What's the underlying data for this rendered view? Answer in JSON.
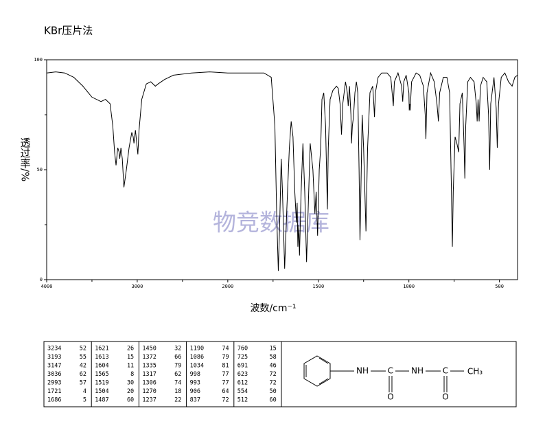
{
  "chart_data": {
    "type": "line",
    "title": "KBr压片法",
    "x_label": "波数/cm⁻¹",
    "y_label": "透过率/%",
    "watermark": "物竞数据库",
    "xlim": [
      4000,
      400
    ],
    "x_break": 2000,
    "xticks": [
      4000,
      3000,
      2000,
      1500,
      1000,
      500
    ],
    "x_minor_ticks": [
      3500,
      2500,
      1750,
      1250,
      750
    ],
    "ylim": [
      0,
      100
    ],
    "yticks": [
      0,
      50,
      100
    ],
    "y_minor_ticks": [
      25,
      75
    ],
    "series": [
      {
        "color": "#000000",
        "x": [
          4000,
          3900,
          3800,
          3700,
          3600,
          3500,
          3400,
          3350,
          3300,
          3270,
          3250,
          3234,
          3215,
          3200,
          3193,
          3180,
          3165,
          3147,
          3120,
          3090,
          3060,
          3045,
          3036,
          3020,
          3005,
          2993,
          2980,
          2950,
          2900,
          2850,
          2800,
          2770,
          2700,
          2600,
          2400,
          2200,
          2000,
          1900,
          1800,
          1760,
          1740,
          1730,
          1721,
          1712,
          1705,
          1698,
          1686,
          1675,
          1660,
          1650,
          1640,
          1630,
          1621,
          1617,
          1613,
          1608,
          1604,
          1595,
          1585,
          1575,
          1565,
          1555,
          1545,
          1530,
          1519,
          1512,
          1504,
          1495,
          1487,
          1480,
          1470,
          1460,
          1450,
          1445,
          1435,
          1420,
          1400,
          1390,
          1380,
          1372,
          1365,
          1350,
          1340,
          1335,
          1328,
          1320,
          1317,
          1312,
          1306,
          1298,
          1290,
          1282,
          1275,
          1270,
          1265,
          1258,
          1250,
          1237,
          1228,
          1215,
          1200,
          1195,
          1190,
          1185,
          1170,
          1150,
          1120,
          1100,
          1086,
          1080,
          1060,
          1040,
          1034,
          1028,
          1015,
          1000,
          998,
          995,
          993,
          985,
          960,
          940,
          920,
          910,
          906,
          900,
          880,
          860,
          845,
          837,
          830,
          810,
          790,
          775,
          765,
          760,
          755,
          745,
          735,
          725,
          718,
          705,
          695,
          691,
          686,
          675,
          660,
          640,
          628,
          623,
          618,
          612,
          605,
          590,
          570,
          560,
          554,
          548,
          530,
          518,
          512,
          505,
          490,
          470,
          450,
          430,
          415,
          400
        ],
        "values": [
          94,
          94.5,
          94,
          92,
          88,
          83,
          81,
          82,
          80,
          70,
          58,
          52,
          60,
          58,
          55,
          60,
          55,
          42,
          50,
          60,
          67,
          65,
          62,
          68,
          62,
          57,
          68,
          82,
          89,
          90,
          88,
          89,
          91,
          93,
          94,
          94.5,
          94,
          94,
          94,
          92,
          70,
          30,
          4,
          30,
          55,
          40,
          5,
          30,
          60,
          72,
          65,
          40,
          26,
          35,
          15,
          25,
          11,
          40,
          62,
          40,
          8,
          35,
          62,
          50,
          30,
          40,
          20,
          50,
          60,
          82,
          85,
          70,
          32,
          60,
          82,
          86,
          88,
          87,
          80,
          66,
          80,
          90,
          85,
          79,
          88,
          75,
          62,
          70,
          74,
          85,
          90,
          85,
          50,
          18,
          40,
          75,
          60,
          22,
          60,
          85,
          88,
          82,
          74,
          85,
          92,
          94,
          94,
          92,
          79,
          90,
          94,
          88,
          81,
          90,
          93,
          85,
          77,
          80,
          77,
          90,
          94,
          93,
          88,
          75,
          64,
          85,
          94,
          90,
          80,
          72,
          85,
          92,
          92,
          85,
          40,
          15,
          40,
          65,
          62,
          58,
          80,
          85,
          60,
          46,
          70,
          90,
          92,
          90,
          80,
          72,
          82,
          72,
          88,
          92,
          90,
          75,
          50,
          80,
          92,
          78,
          60,
          80,
          92,
          94,
          90,
          88,
          92,
          93
        ]
      }
    ]
  },
  "peak_table": {
    "columns": [
      [
        [
          3234,
          52
        ],
        [
          3193,
          55
        ],
        [
          3147,
          42
        ],
        [
          3036,
          62
        ],
        [
          2993,
          57
        ],
        [
          1721,
          4
        ],
        [
          1686,
          5
        ]
      ],
      [
        [
          1621,
          26
        ],
        [
          1613,
          15
        ],
        [
          1604,
          11
        ],
        [
          1565,
          8
        ],
        [
          1519,
          30
        ],
        [
          1504,
          20
        ],
        [
          1487,
          60
        ]
      ],
      [
        [
          1450,
          32
        ],
        [
          1372,
          66
        ],
        [
          1335,
          79
        ],
        [
          1317,
          62
        ],
        [
          1306,
          74
        ],
        [
          1270,
          18
        ],
        [
          1237,
          22
        ]
      ],
      [
        [
          1190,
          74
        ],
        [
          1086,
          79
        ],
        [
          1034,
          81
        ],
        [
          998,
          77
        ],
        [
          993,
          77
        ],
        [
          906,
          64
        ],
        [
          837,
          72
        ]
      ],
      [
        [
          760,
          15
        ],
        [
          725,
          58
        ],
        [
          691,
          46
        ],
        [
          623,
          72
        ],
        [
          612,
          72
        ],
        [
          554,
          50
        ],
        [
          512,
          60
        ]
      ]
    ]
  },
  "structure": {
    "labels": [
      "NH",
      "C",
      "NH",
      "C",
      "CH₃",
      "O",
      "O"
    ]
  }
}
